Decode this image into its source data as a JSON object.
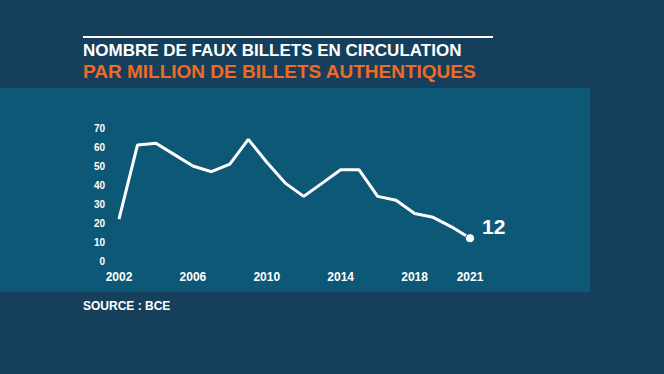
{
  "chart_data": {
    "type": "line",
    "title": "NOMBRE DE FAUX BILLETS EN CIRCULATION",
    "subtitle": "PAR MILLION DE BILLETS AUTHENTIQUES",
    "source": "SOURCE : BCE",
    "categories": [
      "2002",
      null,
      null,
      null,
      "2006",
      null,
      null,
      null,
      "2010",
      null,
      null,
      null,
      "2014",
      null,
      null,
      null,
      "2018",
      null,
      null,
      "2021"
    ],
    "values": [
      22,
      61,
      62,
      56,
      50,
      47,
      51,
      64,
      52,
      41,
      34,
      41,
      48,
      48,
      34,
      32,
      25,
      23,
      18,
      12
    ],
    "color": "#ffffff",
    "ylim": [
      0,
      70
    ],
    "yticks": [
      0,
      10,
      20,
      30,
      40,
      50,
      60,
      70
    ],
    "grid": false,
    "annotations": [
      {
        "category_index": 19,
        "text": "12"
      }
    ]
  }
}
